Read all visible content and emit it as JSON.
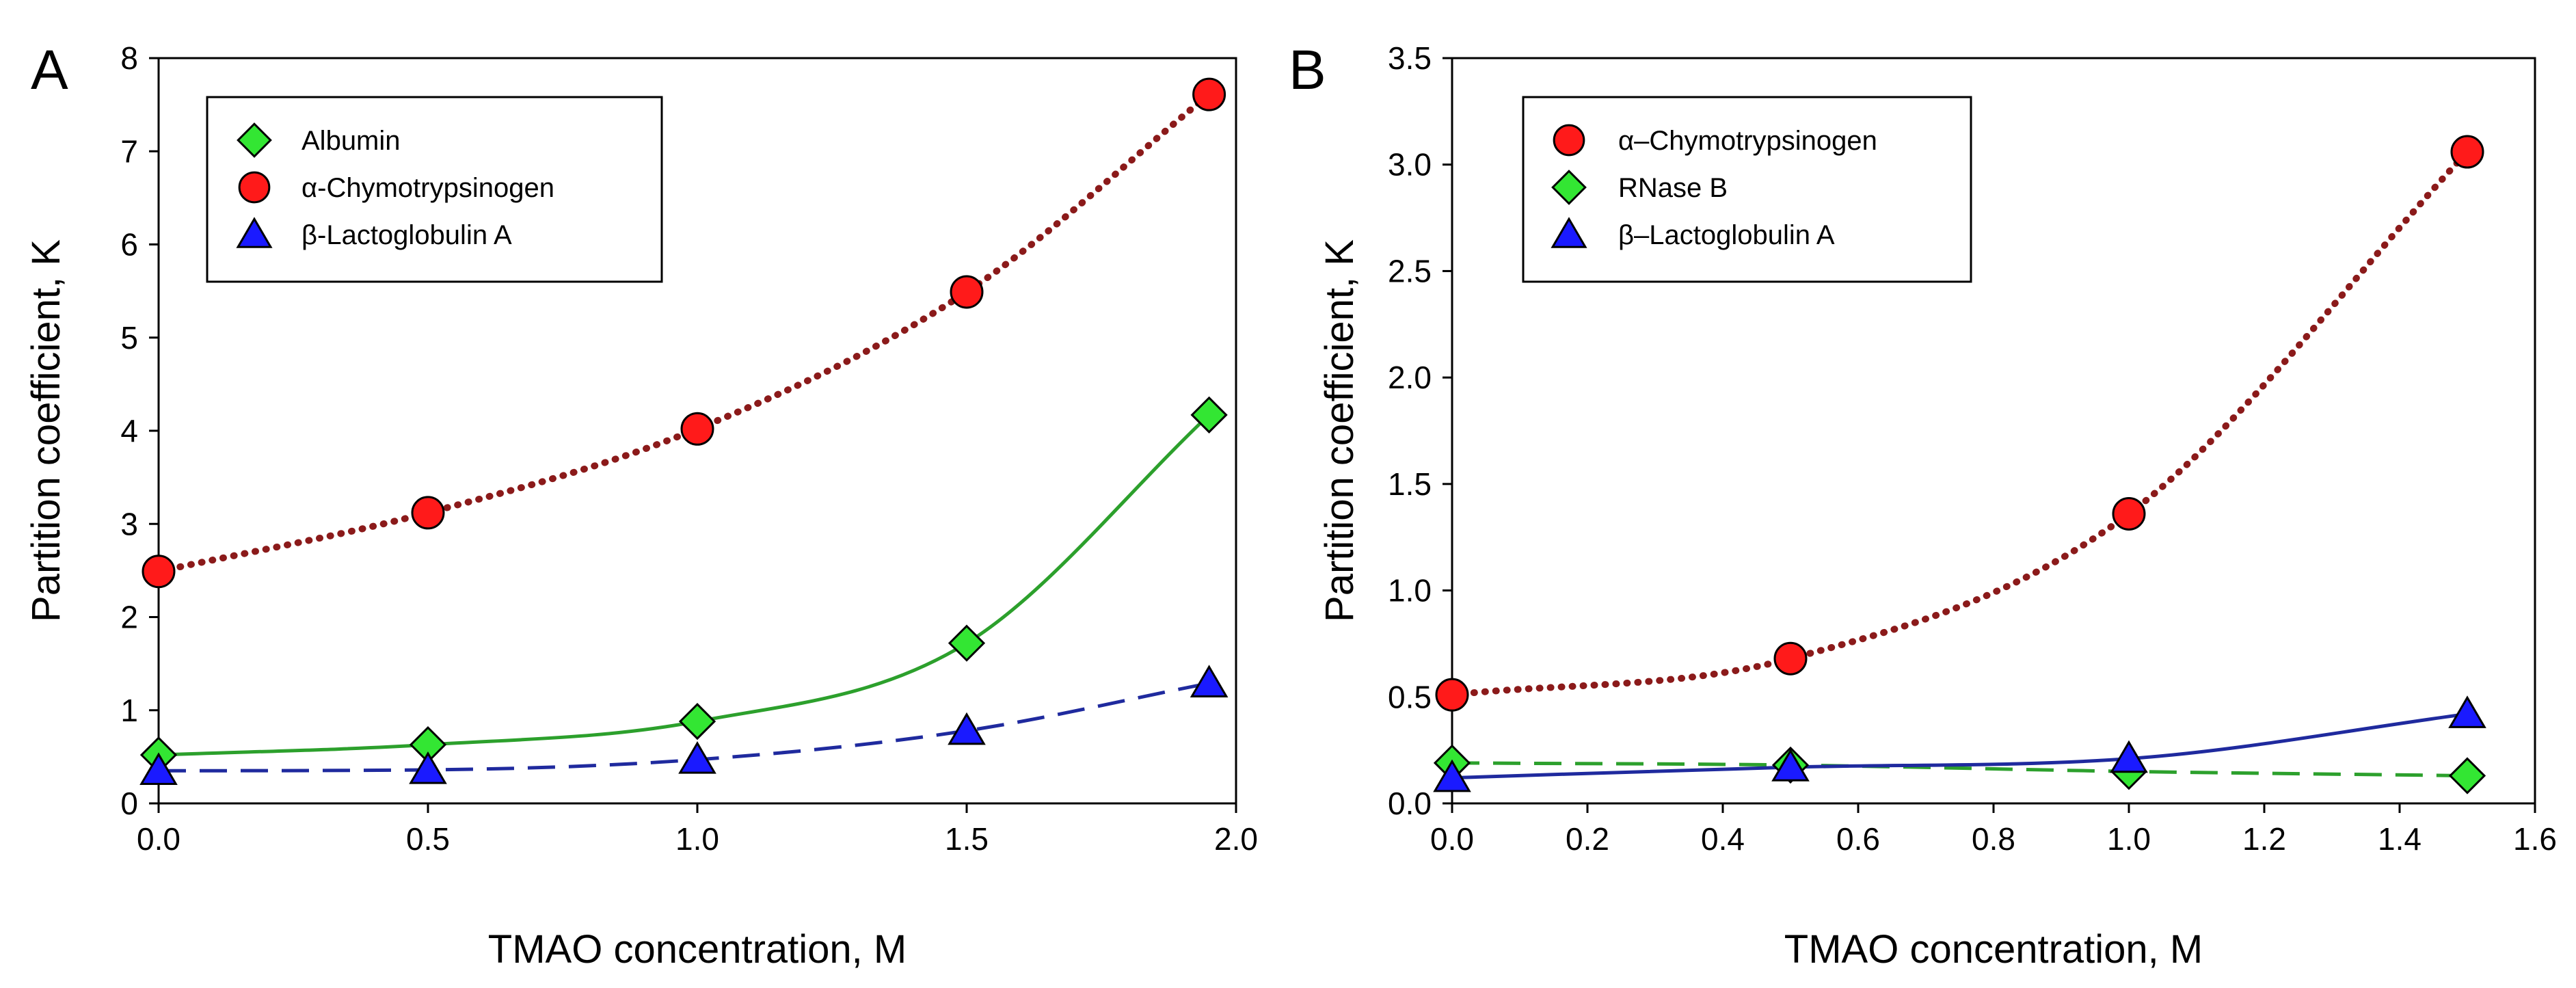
{
  "chart_data": [
    {
      "panel": "A",
      "type": "line",
      "xlabel": "TMAO concentration, M",
      "ylabel": "Partition coefficient, K",
      "xlim": [
        0,
        2.0
      ],
      "ylim": [
        0,
        8
      ],
      "xticks": [
        "0.0",
        "0.5",
        "1.0",
        "1.5",
        "2.0"
      ],
      "yticks": [
        "0",
        "1",
        "2",
        "3",
        "4",
        "5",
        "6",
        "7",
        "8"
      ],
      "grid": false,
      "legend_position": "top-left",
      "series": [
        {
          "name": "Albumin",
          "marker": "diamond",
          "color": "#33e633",
          "line_color": "#2ca02c",
          "line_style": "solid",
          "x": [
            0.0,
            0.5,
            1.0,
            1.5,
            1.95
          ],
          "y": [
            0.52,
            0.63,
            0.88,
            1.72,
            4.17
          ]
        },
        {
          "name": "α-Chymotrypsinogen",
          "marker": "circle",
          "color": "#ff1a1a",
          "line_color": "#8b1a1a",
          "line_style": "dotted",
          "x": [
            0.0,
            0.5,
            1.0,
            1.5,
            1.95
          ],
          "y": [
            2.49,
            3.12,
            4.02,
            5.49,
            7.61
          ]
        },
        {
          "name": "β-Lactoglobulin A",
          "marker": "triangle",
          "color": "#1a1aff",
          "line_color": "#1f2a9e",
          "line_style": "dashed",
          "x": [
            0.0,
            0.5,
            1.0,
            1.5,
            1.95
          ],
          "y": [
            0.35,
            0.36,
            0.47,
            0.78,
            1.29
          ]
        }
      ]
    },
    {
      "panel": "B",
      "type": "line",
      "xlabel": "TMAO concentration, M",
      "ylabel": "Partition coefficient, K",
      "xlim": [
        0,
        1.6
      ],
      "ylim": [
        0,
        3.5
      ],
      "xticks": [
        "0.0",
        "0.2",
        "0.4",
        "0.6",
        "0.8",
        "1.0",
        "1.2",
        "1.4",
        "1.6"
      ],
      "yticks": [
        "0.0",
        "0.5",
        "1.0",
        "1.5",
        "2.0",
        "2.5",
        "3.0",
        "3.5"
      ],
      "grid": false,
      "legend_position": "top-left",
      "series": [
        {
          "name": "α–Chymotrypsinogen",
          "marker": "circle",
          "color": "#ff1a1a",
          "line_color": "#8b1a1a",
          "line_style": "dotted",
          "x": [
            0.0,
            0.5,
            1.0,
            1.5
          ],
          "y": [
            0.51,
            0.68,
            1.36,
            3.06
          ]
        },
        {
          "name": "RNase B",
          "marker": "diamond",
          "color": "#33e633",
          "line_color": "#2ca02c",
          "line_style": "dashed",
          "x": [
            0.0,
            0.5,
            1.0,
            1.5
          ],
          "y": [
            0.19,
            0.18,
            0.15,
            0.13
          ]
        },
        {
          "name": "β–Lactoglobulin A",
          "marker": "triangle",
          "color": "#1a1aff",
          "line_color": "#1f2a9e",
          "line_style": "solid",
          "x": [
            0.0,
            0.5,
            1.0,
            1.5
          ],
          "y": [
            0.12,
            0.17,
            0.21,
            0.42
          ]
        }
      ]
    }
  ]
}
